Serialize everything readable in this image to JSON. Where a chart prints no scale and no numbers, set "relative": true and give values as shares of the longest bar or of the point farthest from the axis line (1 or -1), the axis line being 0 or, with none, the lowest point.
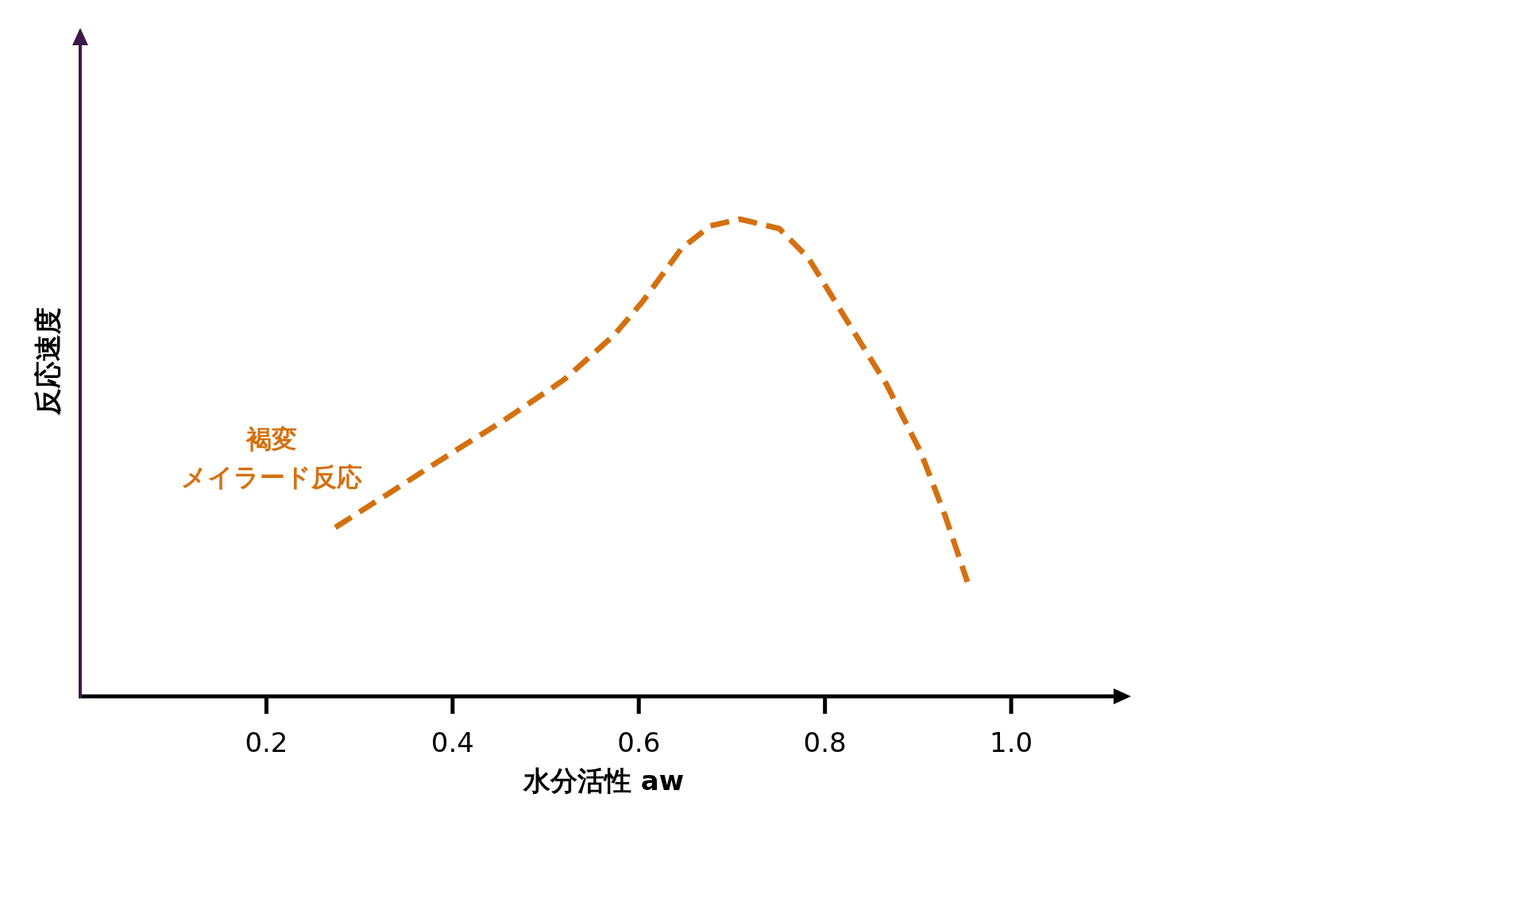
{
  "chart_data": {
    "type": "line",
    "xlabel": "水分活性 aw",
    "ylabel": "反応速度",
    "relative": true,
    "annotations": [
      "褐変"
    ],
    "line_style": "dashed",
    "xlim": [
      0,
      1.11
    ],
    "xticks": [
      0.2,
      0.4,
      0.6,
      0.8,
      {
        "value": 1,
        "label": "1.0"
      }
    ],
    "x": [
      0.274,
      0.332,
      0.395,
      0.458,
      0.52,
      0.573,
      0.604,
      0.646,
      0.677,
      0.709,
      0.751,
      0.782,
      0.824,
      0.866,
      0.903,
      0.929,
      0.953
    ],
    "series": [
      {
        "name": "メイラード反応",
        "color": "#d4700f",
        "values": [
          0.354,
          0.426,
          0.505,
          0.582,
          0.664,
          0.756,
          0.827,
          0.939,
          0.986,
          1,
          0.98,
          0.919,
          0.786,
          0.654,
          0.511,
          0.379,
          0.24
        ]
      }
    ]
  }
}
